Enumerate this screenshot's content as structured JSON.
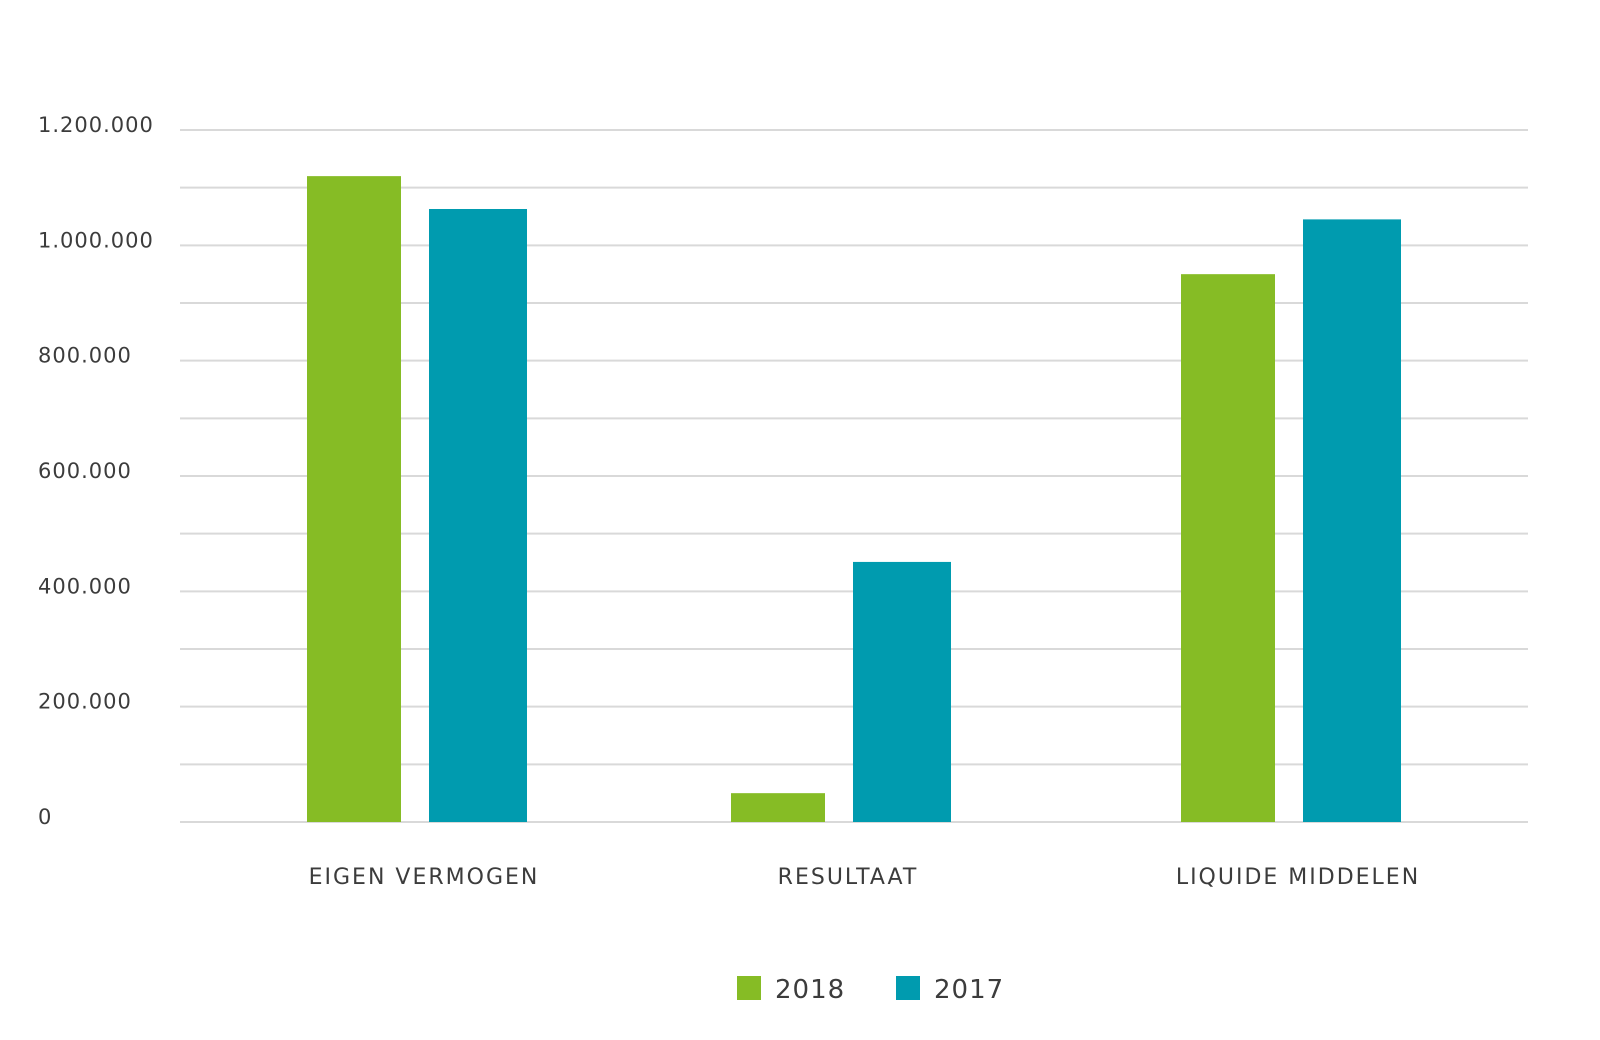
{
  "chart_data": {
    "type": "bar",
    "categories": [
      "EIGEN VERMOGEN",
      "RESULTAAT",
      "LIQUIDE MIDDELEN"
    ],
    "series": [
      {
        "name": "2018",
        "color": "#86bc25",
        "values": [
          1120000,
          50000,
          950000
        ]
      },
      {
        "name": "2017",
        "color": "#009baf",
        "values": [
          1063000,
          451000,
          1045000
        ]
      }
    ],
    "yticks": [
      "0",
      "200.000",
      "400.000",
      "600.000",
      "800.000",
      "1.000.000",
      "1.200.000"
    ],
    "ylim": [
      0,
      1200000
    ],
    "grid": true,
    "legend_position": "bottom-center"
  }
}
